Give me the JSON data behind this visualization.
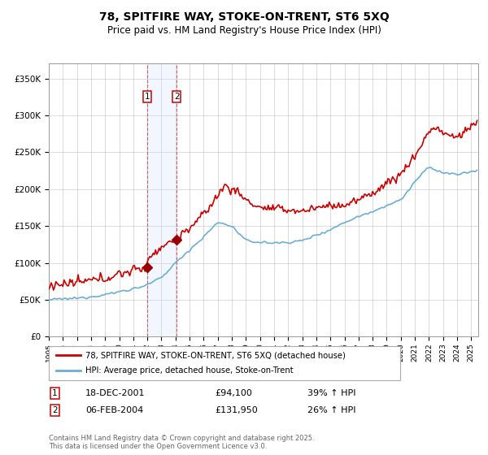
{
  "title": "78, SPITFIRE WAY, STOKE-ON-TRENT, ST6 5XQ",
  "subtitle": "Price paid vs. HM Land Registry's House Price Index (HPI)",
  "ylim": [
    0,
    370000
  ],
  "yticks": [
    0,
    50000,
    100000,
    150000,
    200000,
    250000,
    300000,
    350000
  ],
  "ytick_labels": [
    "£0",
    "£50K",
    "£100K",
    "£150K",
    "£200K",
    "£250K",
    "£300K",
    "£350K"
  ],
  "sale1_date": "18-DEC-2001",
  "sale1_price": 94100,
  "sale1_hpi_text": "39% ↑ HPI",
  "sale1_year": 2001.96,
  "sale2_date": "06-FEB-2004",
  "sale2_price": 131950,
  "sale2_hpi_text": "26% ↑ HPI",
  "sale2_year": 2004.1,
  "legend_line1": "78, SPITFIRE WAY, STOKE-ON-TRENT, ST6 5XQ (detached house)",
  "legend_line2": "HPI: Average price, detached house, Stoke-on-Trent",
  "footnote": "Contains HM Land Registry data © Crown copyright and database right 2025.\nThis data is licensed under the Open Government Licence v3.0.",
  "hpi_color": "#6baed6",
  "price_color": "#cc0000",
  "shade_color": "#cce0ff",
  "bg_color": "#ffffff",
  "grid_color": "#cccccc"
}
